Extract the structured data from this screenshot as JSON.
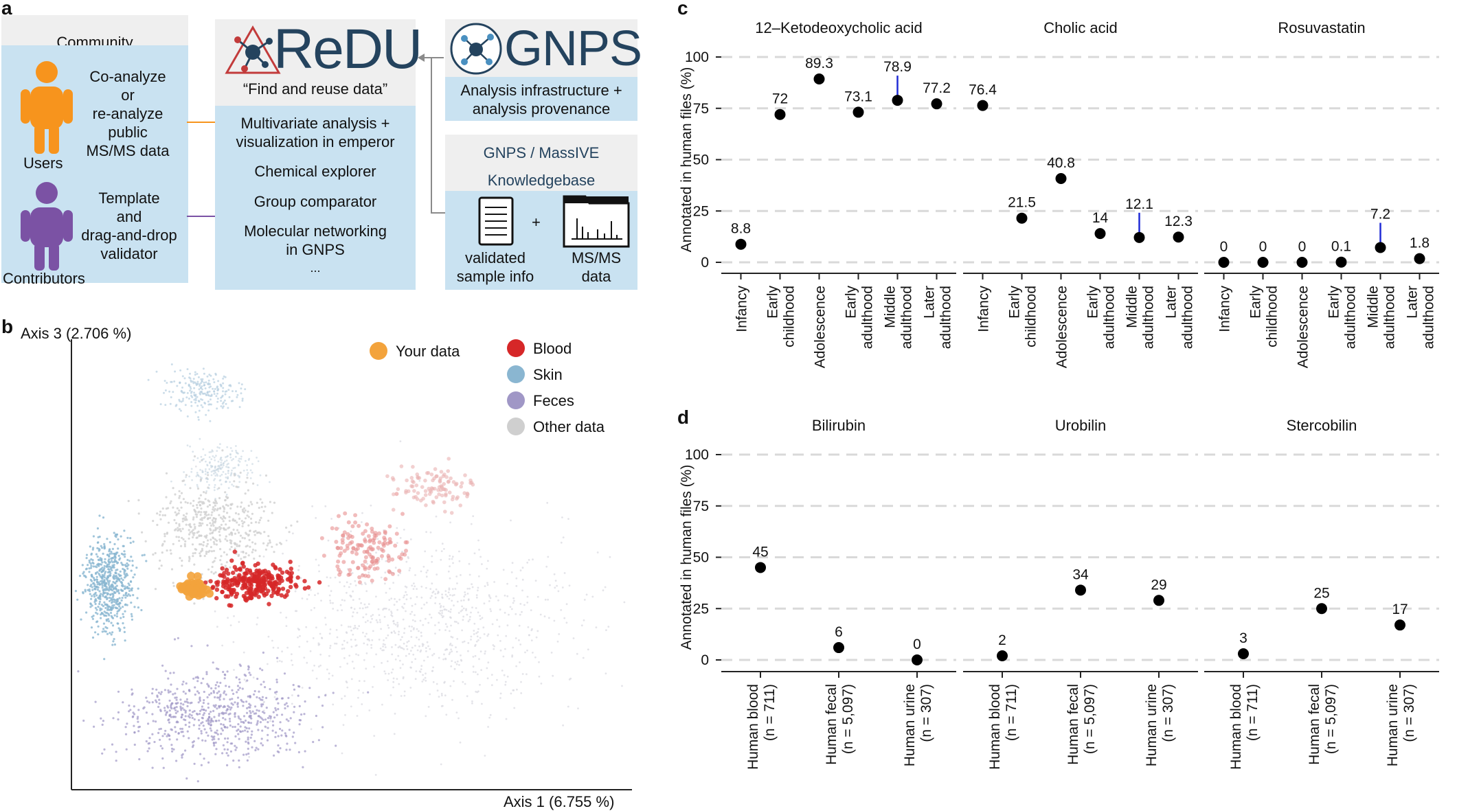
{
  "panel_a": {
    "letter": "a",
    "community": {
      "header": "Community",
      "users_text": [
        "Co-analyze",
        "or",
        "re-analyze",
        "public",
        "MS/MS data"
      ],
      "users_label": "Users",
      "contrib_text": [
        "Template",
        "and",
        "drag-and-drop",
        "validator"
      ],
      "contrib_label": "Contributors",
      "users_color": "#f7941d",
      "contrib_color": "#7b52a4"
    },
    "redu": {
      "logo_text": "ReDU",
      "tagline": "“Find and reuse data”",
      "features": [
        "Multivariate analysis +",
        "visualization in emperor",
        "Chemical explorer",
        "Group comparator",
        "Molecular networking",
        "in GNPS",
        "..."
      ]
    },
    "gnps": {
      "logo_text": "GNPS",
      "subtitle": [
        "Analysis infrastructure +",
        "analysis provenance"
      ]
    },
    "massive": {
      "title": [
        "GNPS / MassIVE",
        "Knowledgebase"
      ],
      "plus": "+",
      "item1": [
        "validated",
        "sample info"
      ],
      "item2": [
        "MS/MS",
        "data"
      ]
    }
  },
  "panel_b": {
    "letter": "b",
    "y_axis_label": "Axis 3 (2.706 %)",
    "x_axis_label": "Axis 1 (6.755 %)",
    "legend": [
      {
        "label": "Your data",
        "color": "#f3a33c"
      },
      {
        "label": "Blood",
        "color": "#d62728"
      },
      {
        "label": "Skin",
        "color": "#8ab6d1"
      },
      {
        "label": "Feces",
        "color": "#a097c6"
      },
      {
        "label": "Other data",
        "color": "#cfcfcf"
      }
    ]
  },
  "chart_data": [
    {
      "type": "scatter",
      "panel": "c",
      "title": "12–Ketodeoxycholic acid",
      "ylabel": "Annotated in human files (%)",
      "ylim": [
        0,
        100
      ],
      "yticks": [
        0,
        25,
        50,
        75,
        100
      ],
      "categories": [
        "Infancy",
        "Early childhood",
        "Adolescence",
        "Early adulthood",
        "Middle adulthood",
        "Later adulthood"
      ],
      "values": [
        8.8,
        72,
        89.3,
        73.1,
        78.9,
        77.2
      ],
      "labels": [
        "8.8",
        "72",
        "89.3",
        "73.1",
        "78.9",
        "77.2"
      ],
      "highlight_index": 4
    },
    {
      "type": "scatter",
      "panel": "c",
      "title": "Cholic acid",
      "ylim": [
        0,
        100
      ],
      "categories": [
        "Infancy",
        "Early childhood",
        "Adolescence",
        "Early adulthood",
        "Middle adulthood",
        "Later adulthood"
      ],
      "values": [
        76.4,
        21.5,
        40.8,
        14,
        12.1,
        12.3
      ],
      "labels": [
        "76.4",
        "21.5",
        "40.8",
        "14",
        "12.1",
        "12.3"
      ],
      "highlight_index": 4
    },
    {
      "type": "scatter",
      "panel": "c",
      "title": "Rosuvastatin",
      "ylim": [
        0,
        100
      ],
      "categories": [
        "Infancy",
        "Early childhood",
        "Adolescence",
        "Early adulthood",
        "Middle adulthood",
        "Later adulthood"
      ],
      "values": [
        0,
        0,
        0,
        0.1,
        7.2,
        1.8
      ],
      "labels": [
        "0",
        "0",
        "0",
        "0.1",
        "7.2",
        "1.8"
      ],
      "highlight_index": 4
    },
    {
      "type": "scatter",
      "panel": "d",
      "title": "Bilirubin",
      "ylabel": "Annotated in human files (%)",
      "ylim": [
        0,
        100
      ],
      "yticks": [
        0,
        25,
        50,
        75,
        100
      ],
      "categories": [
        "Human blood (n = 711)",
        "Human fecal (n = 5,097)",
        "Human urine (n = 307)"
      ],
      "values": [
        45,
        6,
        0
      ],
      "labels": [
        "45",
        "6",
        "0"
      ]
    },
    {
      "type": "scatter",
      "panel": "d",
      "title": "Urobilin",
      "ylim": [
        0,
        100
      ],
      "categories": [
        "Human blood (n = 711)",
        "Human fecal (n = 5,097)",
        "Human urine (n = 307)"
      ],
      "values": [
        2,
        34,
        29
      ],
      "labels": [
        "2",
        "34",
        "29"
      ]
    },
    {
      "type": "scatter",
      "panel": "d",
      "title": "Stercobilin",
      "ylim": [
        0,
        100
      ],
      "categories": [
        "Human blood (n = 711)",
        "Human fecal (n = 5,097)",
        "Human urine (n = 307)"
      ],
      "values": [
        3,
        25,
        17
      ],
      "labels": [
        "3",
        "25",
        "17"
      ]
    }
  ],
  "panel_c": {
    "letter": "c",
    "age_labels": [
      [
        "Infancy"
      ],
      [
        "Early",
        "childhood"
      ],
      [
        "Adolescence"
      ],
      [
        "Early",
        "adulthood"
      ],
      [
        "Middle",
        "adulthood"
      ],
      [
        "Later",
        "adulthood"
      ]
    ]
  },
  "panel_d": {
    "letter": "d",
    "sample_labels": [
      [
        "Human blood",
        "(n = 711)"
      ],
      [
        "Human fecal",
        "(n = 5,097)"
      ],
      [
        "Human urine",
        "(n = 307)"
      ]
    ]
  },
  "colors": {
    "highlight_line": "#1f2bd6",
    "grid": "#d9d9d9",
    "dot": "#000000"
  }
}
